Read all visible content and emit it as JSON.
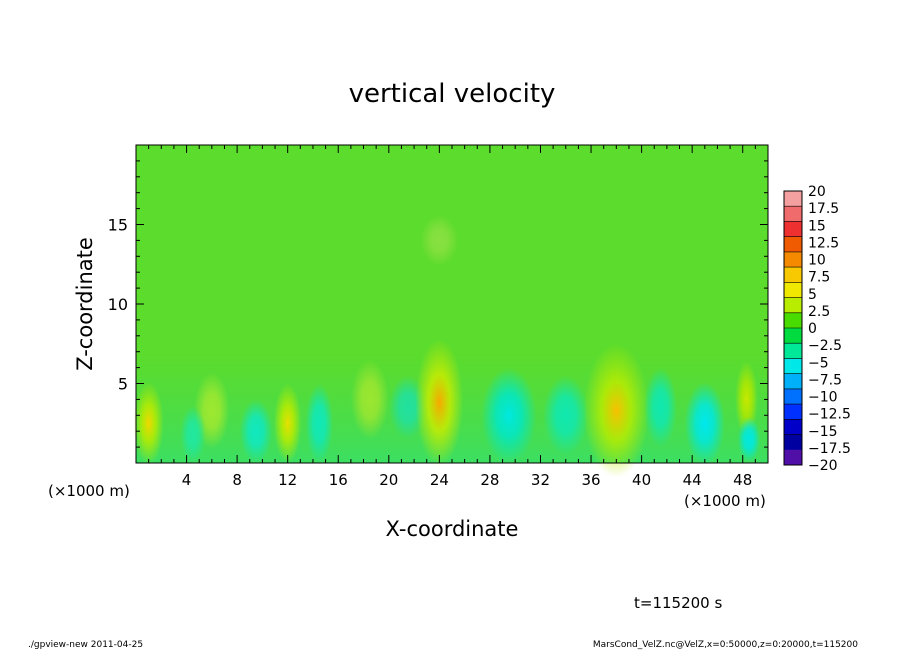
{
  "chart_data": {
    "type": "heatmap",
    "title": "vertical velocity",
    "xlabel": "X-coordinate",
    "ylabel": "Z-coordinate",
    "x_unit": "(×1000 m)",
    "x_ticks": [
      4,
      8,
      12,
      16,
      20,
      24,
      28,
      32,
      36,
      40,
      44,
      48
    ],
    "y_ticks": [
      5,
      10,
      15
    ],
    "xlim": [
      0,
      50
    ],
    "ylim": [
      0,
      20
    ],
    "colorbar": {
      "levels": [
        "20",
        "17.5",
        "15",
        "12.5",
        "10",
        "7.5",
        "5",
        "2.5",
        "0",
        "−2.5",
        "−5",
        "−7.5",
        "−10",
        "−12.5",
        "−15",
        "−17.5",
        "−20"
      ],
      "colors": [
        "#f4a0a0",
        "#f06c6c",
        "#ee3030",
        "#f05a00",
        "#f58a00",
        "#f8c800",
        "#f0e800",
        "#b8ec00",
        "#48dc00",
        "#00dc40",
        "#00e898",
        "#00e8e8",
        "#00b0f8",
        "#0070ff",
        "#0030ff",
        "#0000c8",
        "#0000a0",
        "#5010a8"
      ]
    },
    "features": [
      {
        "x": 24,
        "z": 3.5,
        "value": 7.5
      },
      {
        "x": 38,
        "z": 3.0,
        "value": 5
      },
      {
        "x": 1.0,
        "z": 2.5,
        "value": 5
      },
      {
        "x": 12,
        "z": 2.5,
        "value": 2.5
      },
      {
        "x": 29,
        "z": 3.0,
        "value": -5
      },
      {
        "x": 45,
        "z": 2.5,
        "value": -7.5
      }
    ],
    "time_label": "t=115200 s"
  },
  "footer": {
    "left": "./gpview-new  2011-04-25",
    "right": "MarsCond_VelZ.nc@VelZ,x=0:50000,z=0:20000,t=115200"
  }
}
